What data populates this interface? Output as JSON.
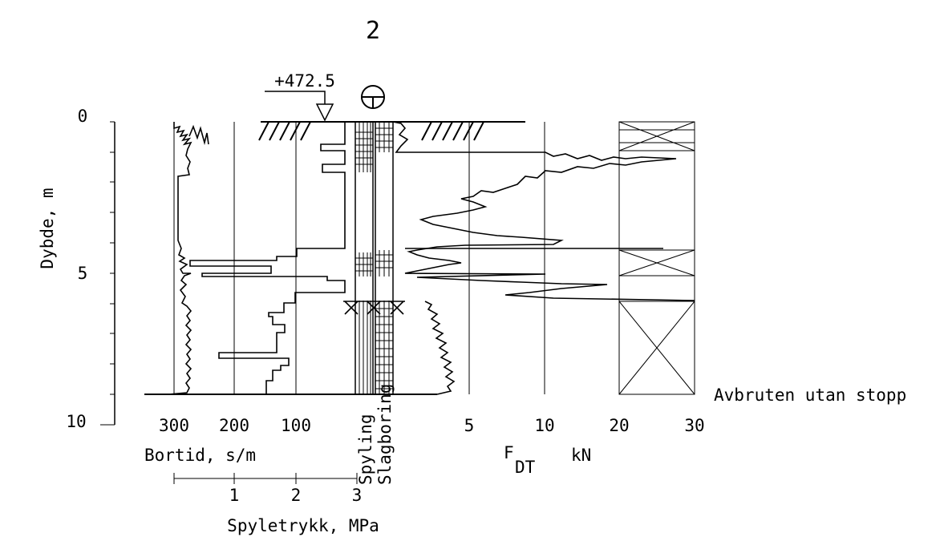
{
  "borehole_number": "2",
  "elevation": "+472.5",
  "depth_axis": {
    "title": "Dybde, m",
    "ticks": [
      "0",
      "5",
      "10"
    ]
  },
  "bortid_axis": {
    "title": "Bortid, s/m",
    "ticks": [
      "300",
      "200",
      "100"
    ]
  },
  "spyletrykk_axis": {
    "title": "Spyletrykk, MPa",
    "ticks": [
      "1",
      "2",
      "3"
    ]
  },
  "column_labels": {
    "spyling": "Spyling",
    "slagboring": "Slagboring"
  },
  "force_axis": {
    "title_main": "F",
    "title_sub": "DT",
    "unit": "kN",
    "ticks": [
      "5",
      "10",
      "20",
      "30"
    ]
  },
  "stop_text": "Avbruten utan stopp",
  "colors": {
    "line": "#000000",
    "background": "#ffffff"
  }
}
